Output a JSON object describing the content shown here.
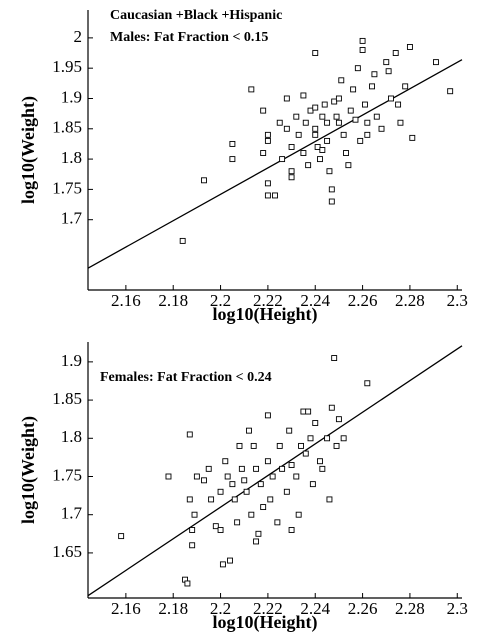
{
  "chart_data": [
    {
      "type": "scatter",
      "title": [
        "Caucasian +Black +Hispanic",
        "Males: Fat Fraction < 0.15"
      ],
      "xlabel": "log10(Height)",
      "ylabel": "log10(Weight)",
      "xlim": [
        2.144,
        2.302
      ],
      "ylim": [
        1.584,
        2.046
      ],
      "xticks": [
        2.16,
        2.18,
        2.2,
        2.22,
        2.24,
        2.26,
        2.28,
        2.3
      ],
      "yticks": [
        1.7,
        1.75,
        1.8,
        1.85,
        1.9,
        1.95,
        2
      ],
      "color": "#000000",
      "x": [
        2.184,
        2.193,
        2.205,
        2.205,
        2.213,
        2.218,
        2.218,
        2.22,
        2.22,
        2.22,
        2.22,
        2.223,
        2.225,
        2.226,
        2.228,
        2.228,
        2.23,
        2.23,
        2.23,
        2.232,
        2.233,
        2.235,
        2.235,
        2.236,
        2.237,
        2.238,
        2.24,
        2.24,
        2.24,
        2.24,
        2.241,
        2.242,
        2.243,
        2.244,
        2.245,
        2.245,
        2.246,
        2.247,
        2.247,
        2.248,
        2.249,
        2.25,
        2.25,
        2.251,
        2.252,
        2.253,
        2.254,
        2.255,
        2.256,
        2.257,
        2.258,
        2.259,
        2.26,
        2.26,
        2.261,
        2.262,
        2.264,
        2.265,
        2.266,
        2.268,
        2.27,
        2.271,
        2.272,
        2.274,
        2.275,
        2.276,
        2.278,
        2.28,
        2.281,
        2.291,
        2.297,
        2.262,
        2.243
      ],
      "y": [
        1.665,
        1.765,
        1.825,
        1.8,
        1.915,
        1.88,
        1.81,
        1.84,
        1.83,
        1.74,
        1.76,
        1.74,
        1.86,
        1.8,
        1.9,
        1.85,
        1.82,
        1.78,
        1.77,
        1.87,
        1.84,
        1.905,
        1.81,
        1.86,
        1.79,
        1.88,
        1.975,
        1.885,
        1.85,
        1.84,
        1.82,
        1.8,
        1.87,
        1.89,
        1.86,
        1.83,
        1.78,
        1.73,
        1.75,
        1.895,
        1.87,
        1.9,
        1.86,
        1.93,
        1.84,
        1.81,
        1.79,
        1.88,
        1.915,
        1.865,
        1.95,
        1.83,
        1.995,
        1.98,
        1.89,
        1.86,
        1.92,
        1.94,
        1.87,
        1.85,
        1.96,
        1.945,
        1.9,
        1.975,
        1.89,
        1.86,
        1.92,
        1.985,
        1.835,
        1.96,
        1.912,
        1.84,
        1.815
      ],
      "line": {
        "x": [
          2.144,
          2.302
        ],
        "y": [
          1.62,
          1.964
        ]
      }
    },
    {
      "type": "scatter",
      "title": [
        "Females: Fat Fraction < 0.24"
      ],
      "xlabel": "log10(Height)",
      "ylabel": "log10(Weight)",
      "xlim": [
        2.144,
        2.302
      ],
      "ylim": [
        1.591,
        1.926
      ],
      "xticks": [
        2.16,
        2.18,
        2.2,
        2.22,
        2.24,
        2.26,
        2.28,
        2.3
      ],
      "yticks": [
        1.65,
        1.7,
        1.75,
        1.8,
        1.85,
        1.9
      ],
      "color": "#000000",
      "x": [
        2.158,
        2.178,
        2.185,
        2.186,
        2.187,
        2.187,
        2.188,
        2.188,
        2.189,
        2.19,
        2.193,
        2.195,
        2.196,
        2.198,
        2.2,
        2.2,
        2.201,
        2.202,
        2.203,
        2.204,
        2.205,
        2.206,
        2.207,
        2.208,
        2.209,
        2.21,
        2.211,
        2.212,
        2.213,
        2.214,
        2.215,
        2.216,
        2.217,
        2.218,
        2.22,
        2.22,
        2.221,
        2.222,
        2.224,
        2.225,
        2.226,
        2.228,
        2.229,
        2.23,
        2.232,
        2.233,
        2.234,
        2.235,
        2.236,
        2.238,
        2.239,
        2.24,
        2.242,
        2.243,
        2.245,
        2.246,
        2.248,
        2.249,
        2.25,
        2.252,
        2.262,
        2.247,
        2.23,
        2.215,
        2.237
      ],
      "y": [
        1.672,
        1.75,
        1.615,
        1.61,
        1.805,
        1.72,
        1.68,
        1.66,
        1.7,
        1.75,
        1.745,
        1.76,
        1.72,
        1.685,
        1.73,
        1.68,
        1.635,
        1.77,
        1.75,
        1.64,
        1.74,
        1.72,
        1.69,
        1.79,
        1.76,
        1.745,
        1.73,
        1.81,
        1.7,
        1.79,
        1.76,
        1.675,
        1.74,
        1.71,
        1.83,
        1.77,
        1.72,
        1.75,
        1.69,
        1.79,
        1.76,
        1.73,
        1.81,
        1.765,
        1.75,
        1.7,
        1.79,
        1.835,
        1.78,
        1.8,
        1.74,
        1.82,
        1.77,
        1.76,
        1.8,
        1.72,
        1.905,
        1.79,
        1.825,
        1.8,
        1.872,
        1.84,
        1.68,
        1.665,
        1.835
      ],
      "line": {
        "x": [
          2.144,
          2.302
        ],
        "y": [
          1.594,
          1.921
        ]
      }
    }
  ]
}
